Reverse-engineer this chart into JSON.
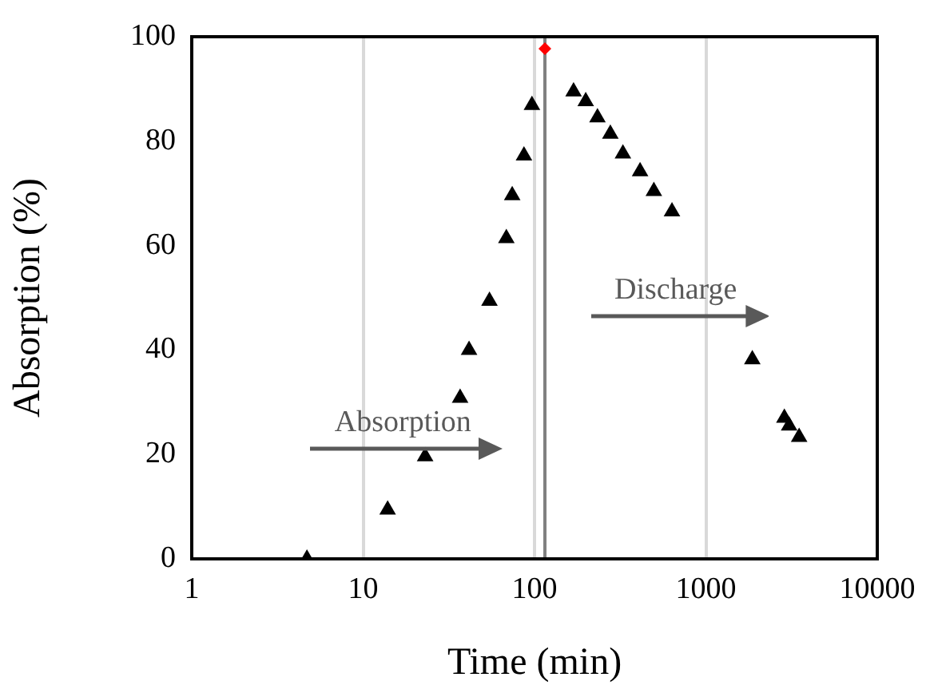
{
  "chart_data": {
    "type": "scatter",
    "xlabel": "Time (min)",
    "ylabel": "Absorption (%)",
    "log": "x",
    "xlim": [
      1,
      10000
    ],
    "xticks": [
      1,
      10,
      100,
      1000,
      10000
    ],
    "ylim": [
      0,
      100
    ],
    "yticks": [
      0,
      20,
      40,
      60,
      80,
      100
    ],
    "grid": "x",
    "legend": false,
    "series": [
      {
        "color": "#000000",
        "marker": "triangle",
        "x": [
          4.7,
          13.9,
          23,
          36.8,
          41.5,
          54.6,
          68.5,
          74.1,
          86.8,
          96.6,
          169,
          199,
          233,
          277,
          328,
          413,
          497,
          634,
          1866,
          2870,
          3060,
          3500
        ],
        "values": [
          0,
          9.4,
          19.6,
          30.8,
          40,
          49.4,
          61.4,
          69.6,
          77.2,
          86.9,
          89.5,
          87.6,
          84.5,
          81.4,
          77.6,
          74.2,
          70.4,
          66.5,
          38.2,
          27,
          25.5,
          23.3
        ]
      },
      {
        "color": "#ff0000",
        "marker": "diamond",
        "x": [
          115
        ],
        "values": [
          97.7
        ]
      }
    ],
    "ref_lines": [
      {
        "axis": "x",
        "value": 115,
        "color": "#808080"
      }
    ],
    "annotations": [
      "Absorption",
      "Discharge"
    ]
  }
}
